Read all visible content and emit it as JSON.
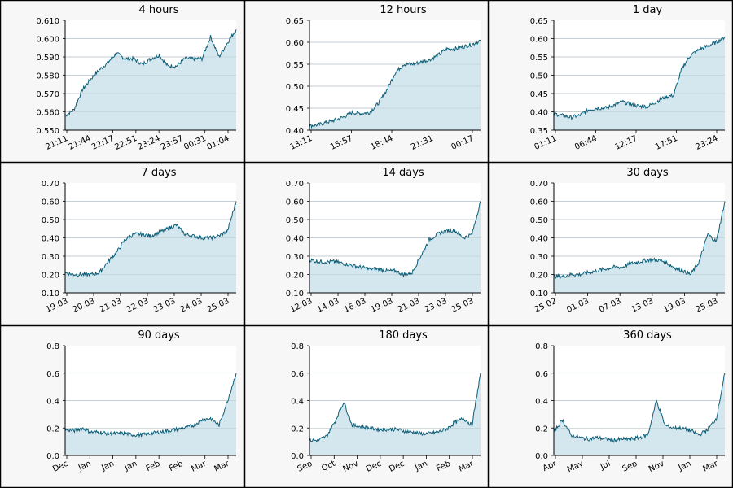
{
  "colors": {
    "line": "#0d5f78",
    "fill": "#d4e6ee",
    "grid": "#a9b7bd",
    "panel_bg": "#f7f7f7",
    "border": "#000000"
  },
  "chart_data": [
    {
      "type": "area",
      "title": "4 hours",
      "ylim": [
        0.55,
        0.61
      ],
      "y_ticks": [
        "0.550",
        "0.560",
        "0.570",
        "0.580",
        "0.590",
        "0.600",
        "0.610"
      ],
      "x_ticks": [
        "21:11",
        "21:44",
        "22:17",
        "22:51",
        "23:24",
        "23:57",
        "00:31",
        "01:04"
      ],
      "x": [
        0,
        0.05,
        0.1,
        0.15,
        0.2,
        0.25,
        0.3,
        0.35,
        0.4,
        0.45,
        0.5,
        0.55,
        0.6,
        0.65,
        0.7,
        0.75,
        0.8,
        0.85,
        0.9,
        0.95,
        1
      ],
      "values": [
        0.558,
        0.561,
        0.572,
        0.578,
        0.583,
        0.587,
        0.592,
        0.589,
        0.589,
        0.586,
        0.589,
        0.591,
        0.585,
        0.585,
        0.589,
        0.589,
        0.589,
        0.601,
        0.59,
        0.598,
        0.605
      ]
    },
    {
      "type": "area",
      "title": "12 hours",
      "ylim": [
        0.4,
        0.65
      ],
      "y_ticks": [
        "0.40",
        "0.45",
        "0.50",
        "0.55",
        "0.60",
        "0.65"
      ],
      "x_ticks": [
        "13:11",
        "15:57",
        "18:44",
        "21:31",
        "00:17"
      ],
      "x": [
        0,
        0.05,
        0.1,
        0.15,
        0.2,
        0.25,
        0.3,
        0.35,
        0.4,
        0.45,
        0.5,
        0.55,
        0.6,
        0.65,
        0.7,
        0.75,
        0.8,
        0.85,
        0.9,
        0.95,
        1
      ],
      "values": [
        0.41,
        0.412,
        0.418,
        0.423,
        0.43,
        0.44,
        0.438,
        0.44,
        0.46,
        0.49,
        0.53,
        0.55,
        0.55,
        0.555,
        0.56,
        0.57,
        0.585,
        0.585,
        0.59,
        0.595,
        0.604
      ]
    },
    {
      "type": "area",
      "title": "1 day",
      "ylim": [
        0.35,
        0.65
      ],
      "y_ticks": [
        "0.35",
        "0.40",
        "0.45",
        "0.50",
        "0.55",
        "0.60",
        "0.65"
      ],
      "x_ticks": [
        "01:11",
        "06:44",
        "12:17",
        "17:51",
        "23:24"
      ],
      "x": [
        0,
        0.05,
        0.1,
        0.15,
        0.2,
        0.25,
        0.3,
        0.35,
        0.4,
        0.45,
        0.5,
        0.55,
        0.6,
        0.65,
        0.7,
        0.75,
        0.8,
        0.85,
        0.9,
        0.95,
        1
      ],
      "values": [
        0.395,
        0.39,
        0.385,
        0.39,
        0.405,
        0.41,
        0.41,
        0.418,
        0.428,
        0.42,
        0.415,
        0.415,
        0.428,
        0.44,
        0.445,
        0.52,
        0.555,
        0.57,
        0.58,
        0.59,
        0.605
      ]
    },
    {
      "type": "area",
      "title": "7 days",
      "ylim": [
        0.1,
        0.7
      ],
      "y_ticks": [
        "0.10",
        "0.20",
        "0.30",
        "0.40",
        "0.50",
        "0.60",
        "0.70"
      ],
      "x_ticks": [
        "19.03",
        "20.03",
        "21.03",
        "22.03",
        "23.03",
        "24.03",
        "25.03"
      ],
      "x": [
        0,
        0.05,
        0.1,
        0.15,
        0.2,
        0.25,
        0.3,
        0.35,
        0.4,
        0.45,
        0.5,
        0.55,
        0.6,
        0.65,
        0.7,
        0.75,
        0.8,
        0.85,
        0.9,
        0.95,
        1
      ],
      "values": [
        0.21,
        0.2,
        0.2,
        0.2,
        0.21,
        0.27,
        0.32,
        0.39,
        0.42,
        0.42,
        0.41,
        0.43,
        0.45,
        0.47,
        0.42,
        0.41,
        0.4,
        0.4,
        0.41,
        0.44,
        0.6
      ]
    },
    {
      "type": "area",
      "title": "14 days",
      "ylim": [
        0.1,
        0.7
      ],
      "y_ticks": [
        "0.10",
        "0.20",
        "0.30",
        "0.40",
        "0.50",
        "0.60",
        "0.70"
      ],
      "x_ticks": [
        "12.03",
        "14.03",
        "16.03",
        "19.03",
        "21.03",
        "23.03",
        "25.03"
      ],
      "x": [
        0,
        0.05,
        0.1,
        0.15,
        0.2,
        0.25,
        0.3,
        0.35,
        0.4,
        0.45,
        0.5,
        0.55,
        0.6,
        0.65,
        0.7,
        0.75,
        0.8,
        0.85,
        0.9,
        0.95,
        1
      ],
      "values": [
        0.28,
        0.27,
        0.27,
        0.27,
        0.26,
        0.25,
        0.24,
        0.23,
        0.23,
        0.22,
        0.22,
        0.2,
        0.21,
        0.3,
        0.39,
        0.42,
        0.44,
        0.44,
        0.4,
        0.42,
        0.6
      ]
    },
    {
      "type": "area",
      "title": "30 days",
      "ylim": [
        0.1,
        0.7
      ],
      "y_ticks": [
        "0.10",
        "0.20",
        "0.30",
        "0.40",
        "0.50",
        "0.60",
        "0.70"
      ],
      "x_ticks": [
        "25.02",
        "01.03",
        "07.03",
        "13.03",
        "19.03",
        "25.03"
      ],
      "x": [
        0,
        0.05,
        0.1,
        0.15,
        0.2,
        0.25,
        0.3,
        0.35,
        0.4,
        0.45,
        0.5,
        0.55,
        0.6,
        0.65,
        0.7,
        0.75,
        0.8,
        0.85,
        0.9,
        0.95,
        1
      ],
      "values": [
        0.19,
        0.19,
        0.2,
        0.2,
        0.21,
        0.22,
        0.23,
        0.24,
        0.24,
        0.26,
        0.27,
        0.28,
        0.28,
        0.27,
        0.24,
        0.22,
        0.2,
        0.27,
        0.42,
        0.38,
        0.6
      ]
    },
    {
      "type": "area",
      "title": "90 days",
      "ylim": [
        0,
        0.8
      ],
      "y_ticks": [
        "0.0",
        "0.2",
        "0.4",
        "0.6",
        "0.8"
      ],
      "x_ticks": [
        "Dec",
        "Jan",
        "Jan",
        "Jan",
        "Feb",
        "Feb",
        "Mar",
        "Mar"
      ],
      "x": [
        0,
        0.05,
        0.1,
        0.15,
        0.2,
        0.25,
        0.3,
        0.35,
        0.4,
        0.45,
        0.5,
        0.55,
        0.6,
        0.65,
        0.7,
        0.75,
        0.8,
        0.85,
        0.9,
        0.95,
        1
      ],
      "values": [
        0.19,
        0.18,
        0.2,
        0.17,
        0.17,
        0.16,
        0.16,
        0.16,
        0.15,
        0.15,
        0.16,
        0.17,
        0.18,
        0.19,
        0.2,
        0.22,
        0.26,
        0.27,
        0.22,
        0.4,
        0.6
      ]
    },
    {
      "type": "area",
      "title": "180 days",
      "ylim": [
        0,
        0.8
      ],
      "y_ticks": [
        "0.0",
        "0.2",
        "0.4",
        "0.6",
        "0.8"
      ],
      "x_ticks": [
        "Sep",
        "Oct",
        "Nov",
        "Dec",
        "Dec",
        "Jan",
        "Feb",
        "Mar"
      ],
      "x": [
        0,
        0.05,
        0.1,
        0.15,
        0.2,
        0.25,
        0.3,
        0.35,
        0.4,
        0.45,
        0.5,
        0.55,
        0.6,
        0.65,
        0.7,
        0.75,
        0.8,
        0.85,
        0.9,
        0.95,
        1
      ],
      "values": [
        0.11,
        0.11,
        0.14,
        0.25,
        0.39,
        0.22,
        0.21,
        0.2,
        0.19,
        0.19,
        0.19,
        0.18,
        0.17,
        0.16,
        0.16,
        0.17,
        0.19,
        0.24,
        0.27,
        0.22,
        0.6
      ]
    },
    {
      "type": "area",
      "title": "360 days",
      "ylim": [
        0,
        0.8
      ],
      "y_ticks": [
        "0.0",
        "0.2",
        "0.4",
        "0.6",
        "0.8"
      ],
      "x_ticks": [
        "Apr",
        "May",
        "Jul",
        "Sep",
        "Nov",
        "Jan",
        "Mar"
      ],
      "x": [
        0,
        0.05,
        0.1,
        0.15,
        0.2,
        0.25,
        0.3,
        0.35,
        0.4,
        0.45,
        0.5,
        0.55,
        0.6,
        0.65,
        0.7,
        0.75,
        0.8,
        0.85,
        0.9,
        0.95,
        1
      ],
      "values": [
        0.17,
        0.26,
        0.15,
        0.13,
        0.12,
        0.13,
        0.12,
        0.11,
        0.12,
        0.12,
        0.13,
        0.15,
        0.4,
        0.22,
        0.2,
        0.2,
        0.18,
        0.15,
        0.19,
        0.27,
        0.6
      ]
    }
  ]
}
